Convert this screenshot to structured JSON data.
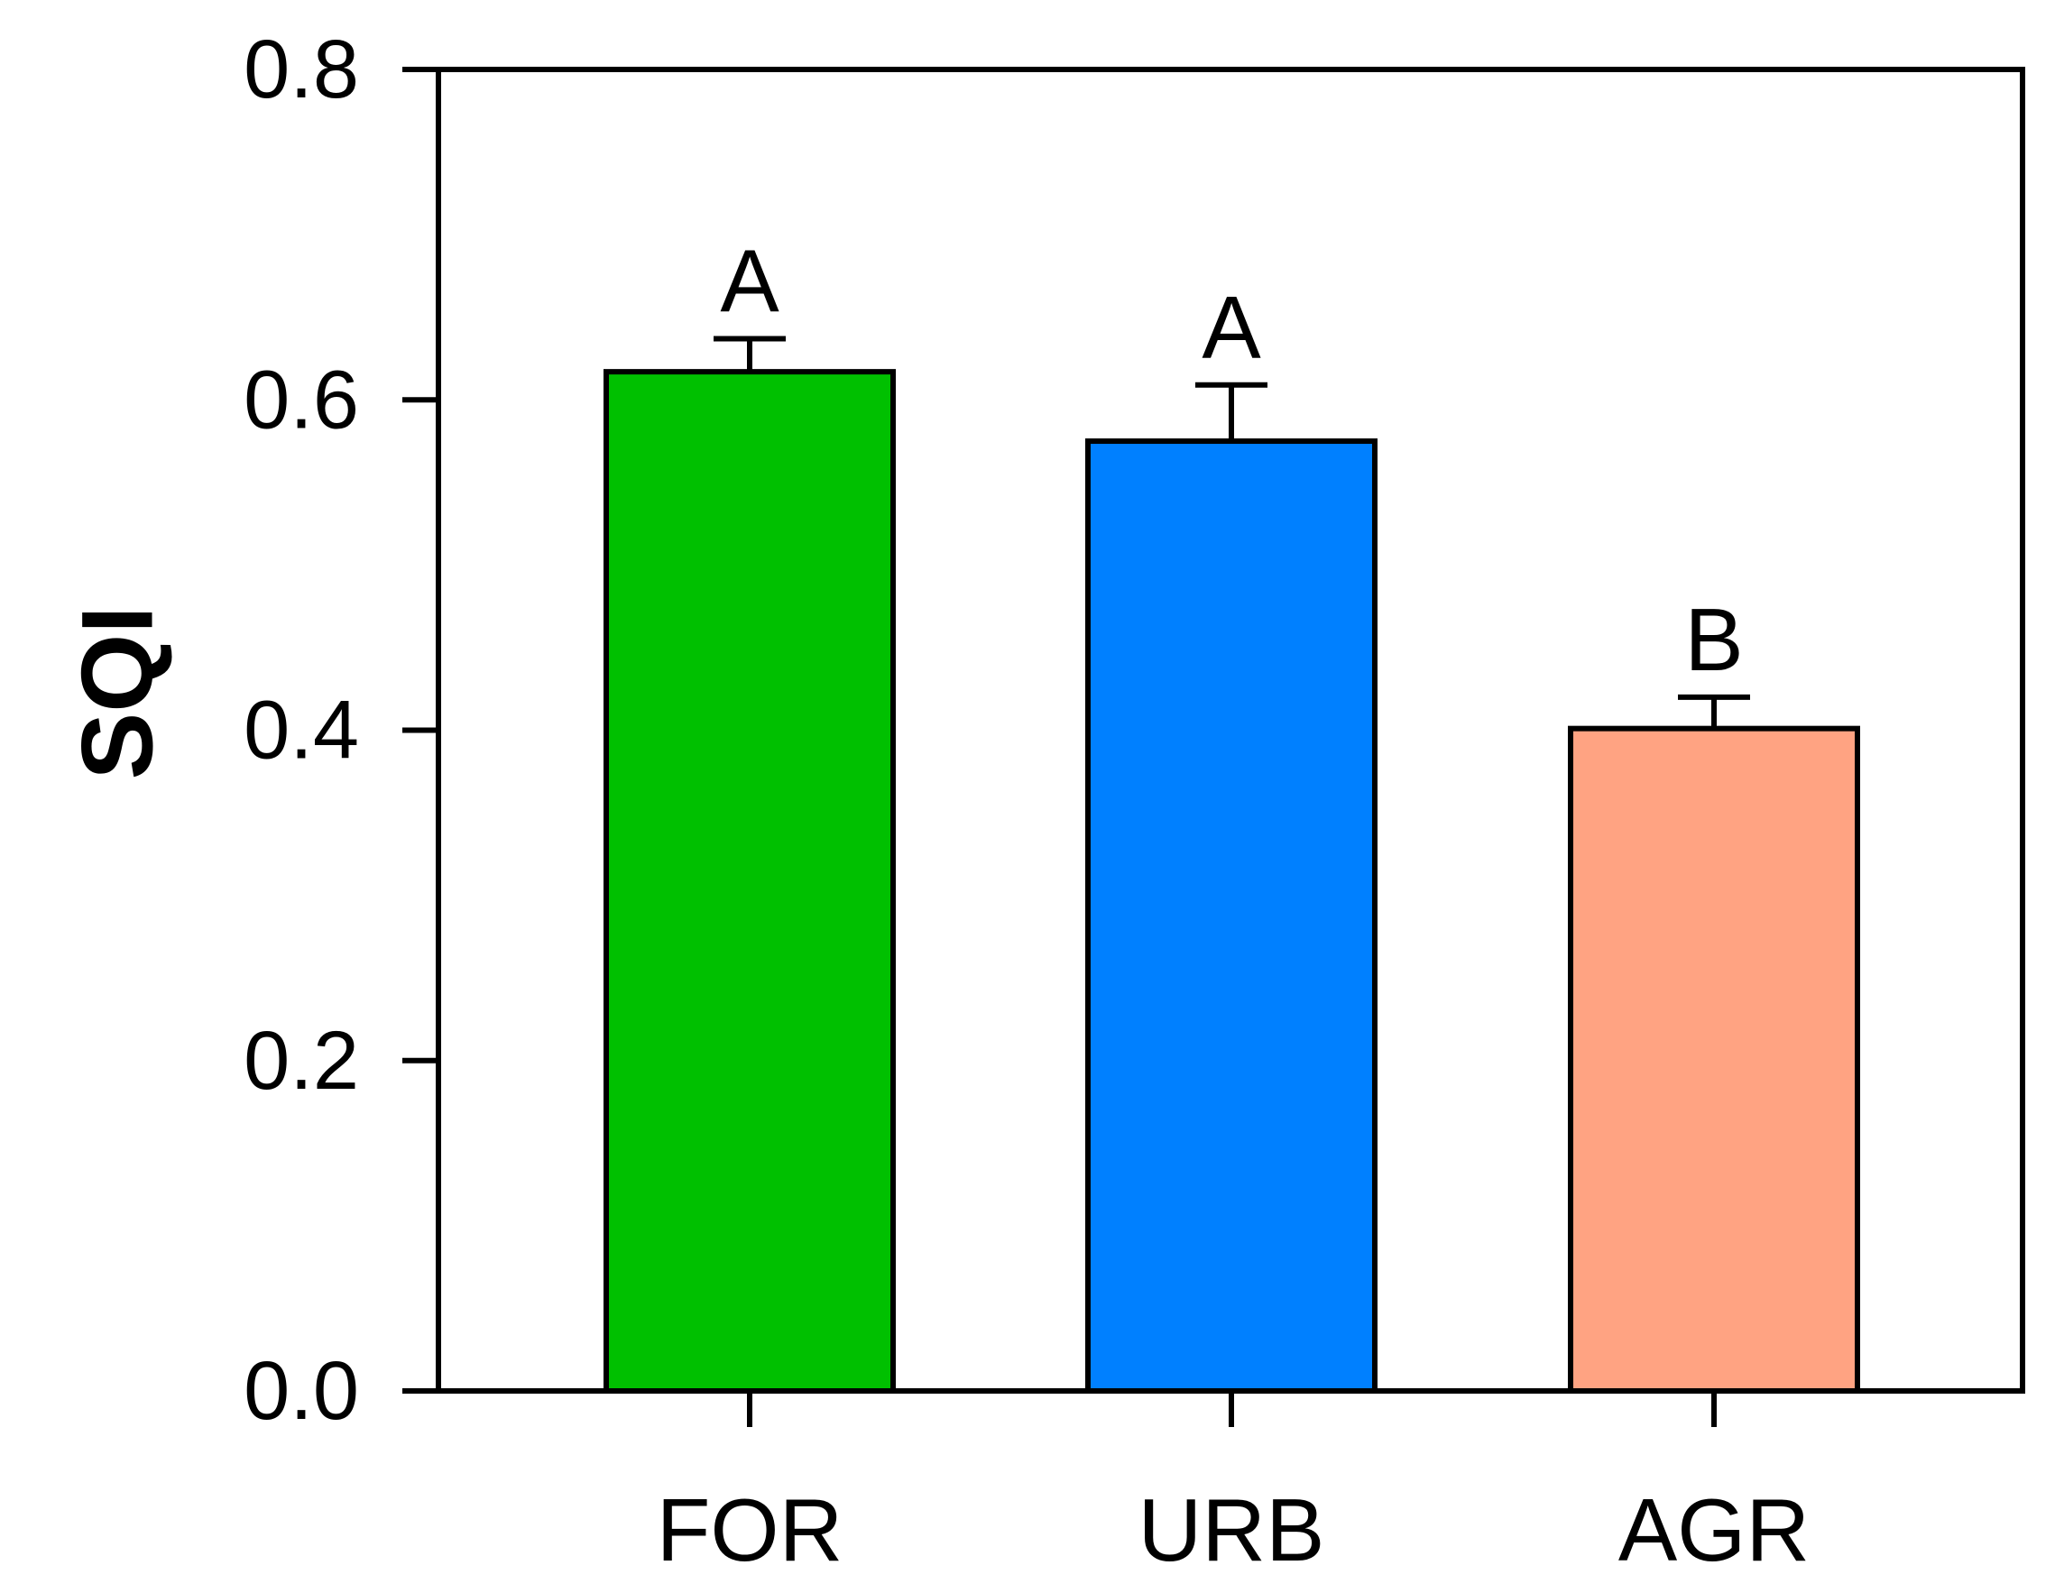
{
  "chart_data": {
    "type": "bar",
    "title": "",
    "xlabel": "",
    "ylabel": "SQI",
    "ylim": [
      0,
      0.8
    ],
    "yticks": [
      "0.0",
      "0.2",
      "0.4",
      "0.6",
      "0.8"
    ],
    "categories": [
      "FOR",
      "URB",
      "AGR"
    ],
    "values": [
      0.617,
      0.575,
      0.401
    ],
    "errors": [
      0.02,
      0.034,
      0.019
    ],
    "significance_letters": [
      "A",
      "A",
      "B"
    ],
    "colors": [
      "#00c000",
      "#0080ff",
      "#ffa382"
    ],
    "grid": false,
    "legend": "none"
  }
}
